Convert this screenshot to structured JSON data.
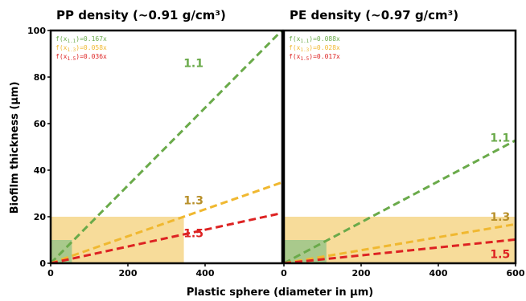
{
  "chart_data": [
    {
      "type": "line",
      "title": "PP density (~0.91 g/cm³)",
      "xlim": [
        0,
        600
      ],
      "ylim": [
        0,
        100
      ],
      "x_ticks": [
        "0",
        "200",
        "400"
      ],
      "y_ticks": [
        "0",
        "20",
        "40",
        "60",
        "80",
        "100"
      ],
      "series": [
        {
          "name": "1.1",
          "slope": 0.167,
          "equation": "f(x1.1)=0.167x",
          "sub": "1.1",
          "coef": ")=0.167x",
          "color": "#6aaa4a",
          "label_x": 370,
          "label_y": 86
        },
        {
          "name": "1.3",
          "slope": 0.058,
          "equation": "f(x1.3)=0.058x",
          "sub": "1.3",
          "coef": ")=0.058x",
          "color": "#f0b830",
          "label_x": 370,
          "label_y": 27
        },
        {
          "name": "1.5",
          "slope": 0.036,
          "equation": "f(x1.5)=0.036x",
          "sub": "1.5",
          "coef": ")=0.036x",
          "color": "#dd2222",
          "label_x": 370,
          "label_y": 13
        }
      ],
      "line_label_colors": [
        "#6aaa4a",
        "#b8902a",
        "#dd2222"
      ],
      "shaded_regions": [
        {
          "x": [
            0,
            345
          ],
          "y": [
            0,
            20
          ],
          "color": "#f7dc9a"
        },
        {
          "x": [
            0,
            55
          ],
          "y": [
            0,
            10
          ],
          "color": "#a9c98c"
        }
      ]
    },
    {
      "type": "line",
      "title": "PE density (~0.97 g/cm³)",
      "xlim": [
        0,
        600
      ],
      "ylim": [
        0,
        100
      ],
      "x_ticks": [
        "0",
        "200",
        "400",
        "600"
      ],
      "series": [
        {
          "name": "1.1",
          "slope": 0.088,
          "equation": "f(x1.1)=0.088x",
          "sub": "1.1",
          "coef": ")=0.088x",
          "color": "#6aaa4a",
          "label_x": 560,
          "label_y": 54
        },
        {
          "name": "1.3",
          "slope": 0.028,
          "equation": "f(x1.3)=0.028x",
          "sub": "1.3",
          "coef": ")=0.028x",
          "color": "#f0b830",
          "label_x": 560,
          "label_y": 20
        },
        {
          "name": "1.5",
          "slope": 0.017,
          "equation": "f(x1.5)=0.017x",
          "sub": "1.5",
          "coef": ")=0.017x",
          "color": "#dd2222",
          "label_x": 560,
          "label_y": 4
        }
      ],
      "line_label_colors": [
        "#6aaa4a",
        "#b8902a",
        "#dd2222"
      ],
      "shaded_regions": [
        {
          "x": [
            0,
            600
          ],
          "y": [
            0,
            20
          ],
          "color": "#f7dc9a"
        },
        {
          "x": [
            0,
            110
          ],
          "y": [
            0,
            10
          ],
          "color": "#a9c98c"
        }
      ]
    }
  ],
  "xlabel": "Plastic sphere (diameter in µm)",
  "ylabel": "Biofilm thickness (µm)"
}
